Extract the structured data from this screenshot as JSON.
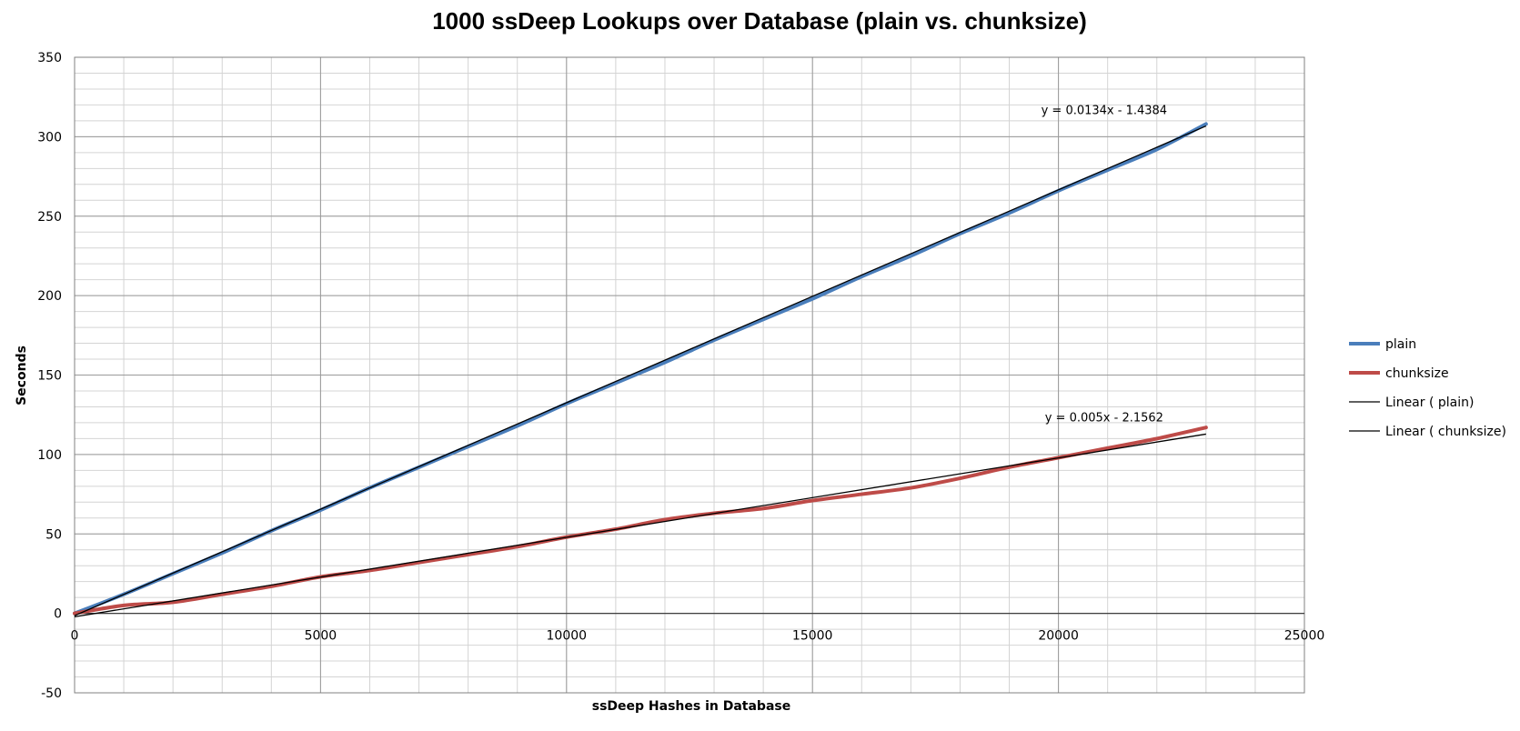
{
  "chart_data": {
    "type": "line",
    "title": "1000 ssDeep Lookups over Database (plain vs. chunksize)",
    "xlabel": "ssDeep Hashes in Database",
    "ylabel": "Seconds",
    "xlim": [
      0,
      25000
    ],
    "ylim": [
      -50,
      350
    ],
    "x_ticks": [
      0,
      5000,
      10000,
      15000,
      20000,
      25000
    ],
    "y_ticks": [
      -50,
      0,
      50,
      100,
      150,
      200,
      250,
      300,
      350
    ],
    "grid": true,
    "legend_position": "right",
    "series": [
      {
        "name": "plain",
        "color": "#4a7ebb",
        "x": [
          0,
          1000,
          2000,
          3000,
          4000,
          5000,
          6000,
          7000,
          8000,
          9000,
          10000,
          11000,
          12000,
          13000,
          14000,
          15000,
          16000,
          17000,
          18000,
          19000,
          20000,
          21000,
          22000,
          23000
        ],
        "values": [
          0,
          12,
          25,
          38,
          52,
          65,
          79,
          92,
          105,
          118,
          132,
          145,
          158,
          172,
          185,
          198,
          212,
          225,
          239,
          252,
          266,
          279,
          292,
          308
        ]
      },
      {
        "name": "chunksize",
        "color": "#be4b48",
        "x": [
          0,
          1000,
          2000,
          3000,
          4000,
          5000,
          6000,
          7000,
          8000,
          9000,
          10000,
          11000,
          12000,
          13000,
          14000,
          15000,
          16000,
          17000,
          18000,
          19000,
          20000,
          21000,
          22000,
          23000
        ],
        "values": [
          0,
          5,
          7,
          12,
          17,
          23,
          27,
          32,
          37,
          42,
          48,
          53,
          59,
          63,
          66,
          71,
          75,
          79,
          85,
          92,
          98,
          104,
          110,
          117
        ]
      }
    ],
    "trendlines": [
      {
        "name": "Linear ( plain)",
        "color": "#000000",
        "slope": 0.0134,
        "intercept": -1.4384,
        "x_range": [
          0,
          23000
        ],
        "equation": "y = 0.0134x - 1.4384"
      },
      {
        "name": "Linear ( chunksize)",
        "color": "#000000",
        "slope": 0.005,
        "intercept": -2.1562,
        "x_range": [
          0,
          23000
        ],
        "equation": "y = 0.005x - 2.1562"
      }
    ],
    "legend": [
      "plain",
      "chunksize",
      "Linear ( plain)",
      "Linear ( chunksize)"
    ]
  }
}
